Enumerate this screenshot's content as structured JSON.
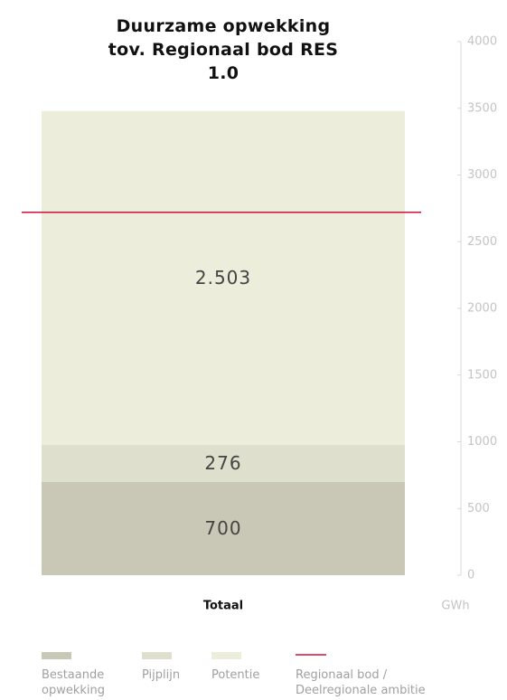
{
  "chart_data": {
    "type": "stacked_bar",
    "title": "Duurzame opwekking tov. Regionaal bod RES 1.0",
    "categories": [
      "Totaal"
    ],
    "series": [
      {
        "name": "Bestaande opwekking",
        "color": "#c9c7b6",
        "values": [
          700
        ],
        "value_labels": [
          "700"
        ]
      },
      {
        "name": "Pijplijn",
        "color": "#dfdfcd",
        "values": [
          276
        ],
        "value_labels": [
          "276"
        ]
      },
      {
        "name": "Potentie",
        "color": "#ededdc",
        "values": [
          2503
        ],
        "value_labels": [
          "2.503"
        ]
      }
    ],
    "reference_line": {
      "name": "Regionaal bod / Deelregionale ambitie",
      "value": 2720,
      "color": "#d0103a"
    },
    "ylabel": "GWh",
    "yaxis_position": "right",
    "ylim": [
      0,
      4000
    ],
    "yticks": [
      0,
      500,
      1000,
      1500,
      2000,
      2500,
      3000,
      3500,
      4000
    ]
  }
}
